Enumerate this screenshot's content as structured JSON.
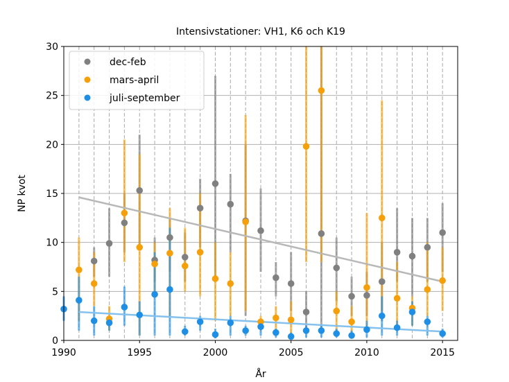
{
  "chart_data": {
    "type": "scatter",
    "title": "Intensivstationer: VH1, K6 och K19",
    "xlabel": "År",
    "ylabel": "NP kvot",
    "xlim": [
      1990,
      2016
    ],
    "ylim": [
      0,
      30
    ],
    "xticks": [
      1990,
      1995,
      2000,
      2005,
      2010,
      2015
    ],
    "yticks": [
      0,
      5,
      10,
      15,
      20,
      25,
      30
    ],
    "grid": true,
    "legend_position": "top-left",
    "series": [
      {
        "name": "dec-feb",
        "color": "#808080",
        "line_color": "#b8b8b8",
        "x": [
          1992,
          1993,
          1994,
          1995,
          1996,
          1997,
          1998,
          1999,
          2000,
          2001,
          2002,
          2003,
          2004,
          2005,
          2006,
          2007,
          2008,
          2009,
          2010,
          2011,
          2012,
          2013,
          2014,
          2015
        ],
        "y": [
          8.1,
          9.9,
          12.0,
          15.3,
          8.2,
          10.5,
          8.5,
          13.5,
          16.0,
          13.9,
          12.2,
          11.2,
          6.4,
          5.8,
          2.9,
          10.9,
          7.4,
          4.5,
          4.6,
          6.0,
          9.0,
          8.6,
          9.5,
          11.0
        ],
        "lower": [
          6.5,
          6.5,
          9.0,
          9.5,
          6.0,
          7.0,
          6.0,
          9.5,
          6.0,
          9.0,
          2.5,
          7.0,
          4.5,
          3.0,
          1.0,
          1.0,
          4.0,
          2.5,
          2.5,
          2.0,
          6.0,
          4.5,
          6.0,
          7.0
        ],
        "upper": [
          9.5,
          13.5,
          15.0,
          21.0,
          10.5,
          12.5,
          11.0,
          16.5,
          27.0,
          17.0,
          20.0,
          15.5,
          8.0,
          9.0,
          5.0,
          30.0,
          10.5,
          6.5,
          7.0,
          10.0,
          13.5,
          12.5,
          12.5,
          14.0
        ],
        "trend": [
          [
            1991,
            14.6
          ],
          [
            2015,
            6.0
          ]
        ]
      },
      {
        "name": "mars-april",
        "color": "#f5a00a",
        "line_color": "#f5a00a",
        "x": [
          1991,
          1992,
          1993,
          1994,
          1995,
          1996,
          1997,
          1998,
          1999,
          2000,
          2001,
          2002,
          2003,
          2004,
          2005,
          2006,
          2007,
          2008,
          2009,
          2010,
          2011,
          2012,
          2013,
          2014,
          2015
        ],
        "y": [
          7.2,
          5.8,
          2.2,
          13.0,
          9.5,
          7.8,
          8.9,
          7.6,
          9.0,
          6.3,
          5.8,
          12.1,
          1.9,
          2.3,
          2.1,
          19.8,
          25.5,
          3.0,
          1.9,
          5.4,
          12.5,
          4.3,
          3.3,
          5.2,
          6.1
        ],
        "lower": [
          2.0,
          3.5,
          1.0,
          8.0,
          0.5,
          5.0,
          2.5,
          5.0,
          4.5,
          2.0,
          2.5,
          3.0,
          1.0,
          1.0,
          0.5,
          8.0,
          8.0,
          1.0,
          0.5,
          1.0,
          3.0,
          1.5,
          1.5,
          2.5,
          3.0
        ],
        "upper": [
          10.5,
          9.0,
          3.5,
          20.5,
          19.0,
          10.0,
          13.5,
          11.5,
          15.0,
          10.0,
          9.0,
          23.0,
          2.5,
          3.5,
          4.0,
          30.0,
          30.0,
          5.0,
          3.5,
          13.0,
          24.5,
          8.0,
          4.5,
          10.0,
          9.5
        ],
        "trend": null
      },
      {
        "name": "juli-september",
        "color": "#1f8fe5",
        "line_color": "#85c1ee",
        "x": [
          1990,
          1991,
          1992,
          1993,
          1994,
          1995,
          1996,
          1997,
          1998,
          1999,
          2000,
          2001,
          2002,
          2003,
          2004,
          2005,
          2006,
          2007,
          2008,
          2009,
          2010,
          2011,
          2012,
          2013,
          2014,
          2015
        ],
        "y": [
          3.2,
          4.1,
          2.0,
          1.8,
          3.4,
          2.6,
          4.7,
          5.2,
          0.9,
          1.9,
          0.6,
          1.8,
          1.0,
          1.4,
          0.8,
          0.4,
          1.0,
          1.0,
          0.7,
          0.5,
          1.1,
          2.5,
          1.3,
          2.9,
          1.9,
          0.7
        ],
        "lower": [
          2.0,
          1.0,
          0.5,
          1.0,
          1.5,
          0.5,
          0.5,
          0.5,
          0.5,
          1.0,
          0.2,
          0.5,
          0.5,
          0.5,
          0.3,
          0.2,
          0.3,
          0.3,
          0.3,
          0.2,
          0.3,
          0.5,
          0.5,
          1.5,
          0.5,
          0.3
        ],
        "upper": [
          4.5,
          6.5,
          3.5,
          2.5,
          5.5,
          4.0,
          9.0,
          11.5,
          1.5,
          2.5,
          1.2,
          2.5,
          1.5,
          2.0,
          1.2,
          0.8,
          1.5,
          1.5,
          1.2,
          1.0,
          2.0,
          4.5,
          2.0,
          4.0,
          2.5,
          1.2
        ],
        "trend": [
          [
            1991,
            2.9
          ],
          [
            2015,
            0.9
          ]
        ]
      }
    ]
  }
}
